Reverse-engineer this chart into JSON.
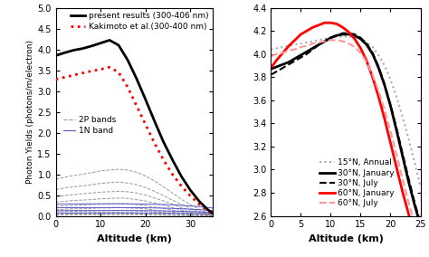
{
  "left": {
    "xlabel": "Altitude (km)",
    "ylabel": "Photon Yields (photons/m/electron)",
    "xlim": [
      0,
      35
    ],
    "ylim": [
      0,
      5
    ],
    "yticks": [
      0,
      0.5,
      1.0,
      1.5,
      2.0,
      2.5,
      3.0,
      3.5,
      4.0,
      4.5,
      5.0
    ],
    "xticks": [
      0,
      10,
      20,
      30
    ],
    "present_results": {
      "x": [
        0,
        2,
        4,
        6,
        8,
        10,
        12,
        14,
        16,
        18,
        20,
        22,
        24,
        26,
        28,
        30,
        32,
        34,
        35
      ],
      "y": [
        3.85,
        3.92,
        3.98,
        4.02,
        4.08,
        4.15,
        4.22,
        4.1,
        3.75,
        3.3,
        2.8,
        2.28,
        1.78,
        1.35,
        0.95,
        0.62,
        0.35,
        0.14,
        0.07
      ],
      "color": "#000000",
      "linestyle": "solid",
      "linewidth": 2.0,
      "label": "present results (300-406 nm)"
    },
    "kakimoto": {
      "x": [
        0,
        2,
        4,
        6,
        8,
        10,
        12,
        14,
        16,
        18,
        20,
        22,
        24,
        26,
        28,
        30,
        32,
        34,
        35
      ],
      "y": [
        3.28,
        3.33,
        3.38,
        3.43,
        3.48,
        3.52,
        3.57,
        3.45,
        3.1,
        2.65,
        2.2,
        1.75,
        1.35,
        1.0,
        0.72,
        0.48,
        0.28,
        0.11,
        0.06
      ],
      "color": "#ff0000",
      "linestyle": "dotted",
      "linewidth": 2.0,
      "label": "Kakimoto et al.(300-400 nm)"
    },
    "bands_2P": [
      {
        "x": [
          0,
          2,
          4,
          6,
          8,
          10,
          12,
          14,
          16,
          18,
          20,
          22,
          24,
          26,
          28,
          30,
          32,
          34,
          35
        ],
        "y": [
          0.88,
          0.93,
          0.97,
          1.0,
          1.04,
          1.08,
          1.1,
          1.12,
          1.1,
          1.05,
          0.96,
          0.84,
          0.7,
          0.55,
          0.4,
          0.27,
          0.16,
          0.07,
          0.04
        ]
      },
      {
        "x": [
          0,
          2,
          4,
          6,
          8,
          10,
          12,
          14,
          16,
          18,
          20,
          22,
          24,
          26,
          28,
          30,
          32,
          34,
          35
        ],
        "y": [
          0.63,
          0.67,
          0.7,
          0.72,
          0.75,
          0.78,
          0.8,
          0.81,
          0.79,
          0.75,
          0.68,
          0.59,
          0.49,
          0.38,
          0.28,
          0.19,
          0.11,
          0.05,
          0.03
        ]
      },
      {
        "x": [
          0,
          2,
          4,
          6,
          8,
          10,
          12,
          14,
          16,
          18,
          20,
          22,
          24,
          26,
          28,
          30,
          32,
          34,
          35
        ],
        "y": [
          0.46,
          0.49,
          0.51,
          0.53,
          0.55,
          0.57,
          0.58,
          0.59,
          0.58,
          0.55,
          0.5,
          0.43,
          0.36,
          0.28,
          0.2,
          0.14,
          0.08,
          0.04,
          0.02
        ]
      },
      {
        "x": [
          0,
          2,
          4,
          6,
          8,
          10,
          12,
          14,
          16,
          18,
          20,
          22,
          24,
          26,
          28,
          30,
          32,
          34,
          35
        ],
        "y": [
          0.33,
          0.35,
          0.37,
          0.38,
          0.39,
          0.41,
          0.42,
          0.43,
          0.42,
          0.39,
          0.36,
          0.31,
          0.26,
          0.2,
          0.14,
          0.1,
          0.06,
          0.025,
          0.013
        ]
      },
      {
        "x": [
          0,
          2,
          4,
          6,
          8,
          10,
          12,
          14,
          16,
          18,
          20,
          22,
          24,
          26,
          28,
          30,
          32,
          34,
          35
        ],
        "y": [
          0.23,
          0.24,
          0.25,
          0.26,
          0.27,
          0.28,
          0.29,
          0.29,
          0.29,
          0.27,
          0.25,
          0.21,
          0.18,
          0.14,
          0.1,
          0.07,
          0.04,
          0.017,
          0.009
        ]
      },
      {
        "x": [
          0,
          2,
          4,
          6,
          8,
          10,
          12,
          14,
          16,
          18,
          20,
          22,
          24,
          26,
          28,
          30,
          32,
          34,
          35
        ],
        "y": [
          0.15,
          0.16,
          0.17,
          0.17,
          0.18,
          0.19,
          0.19,
          0.2,
          0.19,
          0.18,
          0.17,
          0.14,
          0.12,
          0.09,
          0.07,
          0.048,
          0.028,
          0.012,
          0.006
        ]
      },
      {
        "x": [
          0,
          2,
          4,
          6,
          8,
          10,
          12,
          14,
          16,
          18,
          20,
          22,
          24,
          26,
          28,
          30,
          32,
          34,
          35
        ],
        "y": [
          0.1,
          0.105,
          0.11,
          0.115,
          0.12,
          0.125,
          0.13,
          0.13,
          0.13,
          0.12,
          0.11,
          0.095,
          0.08,
          0.062,
          0.045,
          0.031,
          0.018,
          0.008,
          0.004
        ]
      },
      {
        "x": [
          0,
          2,
          4,
          6,
          8,
          10,
          12,
          14,
          16,
          18,
          20,
          22,
          24,
          26,
          28,
          30,
          32,
          34,
          35
        ],
        "y": [
          0.063,
          0.067,
          0.071,
          0.073,
          0.076,
          0.079,
          0.081,
          0.082,
          0.08,
          0.076,
          0.069,
          0.059,
          0.049,
          0.038,
          0.028,
          0.019,
          0.011,
          0.005,
          0.0025
        ]
      },
      {
        "x": [
          0,
          2,
          4,
          6,
          8,
          10,
          12,
          14,
          16,
          18,
          20,
          22,
          24,
          26,
          28,
          30,
          32,
          34,
          35
        ],
        "y": [
          0.038,
          0.041,
          0.043,
          0.045,
          0.047,
          0.048,
          0.05,
          0.05,
          0.049,
          0.046,
          0.042,
          0.036,
          0.03,
          0.023,
          0.017,
          0.011,
          0.007,
          0.003,
          0.0015
        ]
      },
      {
        "x": [
          0,
          2,
          4,
          6,
          8,
          10,
          12,
          14,
          16,
          18,
          20,
          22,
          24,
          26,
          28,
          30,
          32,
          34,
          35
        ],
        "y": [
          0.022,
          0.024,
          0.025,
          0.026,
          0.027,
          0.028,
          0.029,
          0.029,
          0.028,
          0.027,
          0.024,
          0.021,
          0.017,
          0.013,
          0.01,
          0.007,
          0.004,
          0.0017,
          0.0009
        ]
      }
    ],
    "bands_1N": [
      {
        "x": [
          0,
          2,
          4,
          6,
          8,
          10,
          12,
          14,
          16,
          18,
          20,
          22,
          24,
          26,
          28,
          30,
          32,
          34,
          35
        ],
        "y": [
          0.285,
          0.287,
          0.288,
          0.289,
          0.29,
          0.291,
          0.291,
          0.291,
          0.29,
          0.288,
          0.285,
          0.28,
          0.274,
          0.265,
          0.254,
          0.24,
          0.222,
          0.2,
          0.188
        ]
      },
      {
        "x": [
          0,
          2,
          4,
          6,
          8,
          10,
          12,
          14,
          16,
          18,
          20,
          22,
          24,
          26,
          28,
          30,
          32,
          34,
          35
        ],
        "y": [
          0.195,
          0.196,
          0.197,
          0.198,
          0.199,
          0.199,
          0.2,
          0.2,
          0.199,
          0.197,
          0.195,
          0.191,
          0.186,
          0.18,
          0.172,
          0.162,
          0.149,
          0.133,
          0.125
        ]
      },
      {
        "x": [
          0,
          2,
          4,
          6,
          8,
          10,
          12,
          14,
          16,
          18,
          20,
          22,
          24,
          26,
          28,
          30,
          32,
          34,
          35
        ],
        "y": [
          0.125,
          0.126,
          0.127,
          0.127,
          0.128,
          0.128,
          0.129,
          0.129,
          0.128,
          0.127,
          0.125,
          0.123,
          0.12,
          0.115,
          0.11,
          0.103,
          0.095,
          0.085,
          0.08
        ]
      },
      {
        "x": [
          0,
          2,
          4,
          6,
          8,
          10,
          12,
          14,
          16,
          18,
          20,
          22,
          24,
          26,
          28,
          30,
          32,
          34,
          35
        ],
        "y": [
          0.068,
          0.069,
          0.069,
          0.07,
          0.07,
          0.07,
          0.071,
          0.071,
          0.07,
          0.069,
          0.068,
          0.067,
          0.065,
          0.063,
          0.06,
          0.056,
          0.051,
          0.046,
          0.043
        ]
      }
    ],
    "band_2P_color": "#999999",
    "band_1N_color": "#5555CC",
    "legend_2P_label": "2P bands",
    "legend_1N_label": "1N band"
  },
  "right": {
    "xlabel": "Altitude (km)",
    "xlim": [
      0,
      25
    ],
    "ylim": [
      2.6,
      4.4
    ],
    "yticks": [
      2.6,
      2.8,
      3.0,
      3.2,
      3.4,
      3.6,
      3.8,
      4.0,
      4.2,
      4.4
    ],
    "xticks": [
      0,
      5,
      10,
      15,
      20,
      25
    ],
    "lat15_annual": {
      "x": [
        0,
        1,
        2,
        3,
        4,
        5,
        6,
        7,
        8,
        9,
        10,
        11,
        12,
        13,
        14,
        15,
        16,
        17,
        18,
        19,
        20,
        21,
        22,
        23,
        24,
        25
      ],
      "y": [
        4.04,
        4.05,
        4.06,
        4.07,
        4.08,
        4.09,
        4.1,
        4.11,
        4.12,
        4.13,
        4.14,
        4.15,
        4.15,
        4.15,
        4.14,
        4.13,
        4.1,
        4.06,
        3.99,
        3.9,
        3.78,
        3.63,
        3.46,
        3.27,
        3.07,
        2.85
      ],
      "color": "#aaaaaa",
      "linestyle": "dotted",
      "linewidth": 1.5,
      "label": "15°N, Annual"
    },
    "lat30_jan": {
      "x": [
        0,
        1,
        2,
        3,
        4,
        5,
        6,
        7,
        8,
        9,
        10,
        11,
        12,
        13,
        14,
        15,
        16,
        17,
        18,
        19,
        20,
        21,
        22,
        23,
        24,
        25
      ],
      "y": [
        3.87,
        3.89,
        3.91,
        3.93,
        3.96,
        3.99,
        4.02,
        4.05,
        4.08,
        4.11,
        4.14,
        4.16,
        4.17,
        4.17,
        4.16,
        4.13,
        4.08,
        4.0,
        3.88,
        3.73,
        3.55,
        3.34,
        3.12,
        2.9,
        2.7,
        2.52
      ],
      "color": "#000000",
      "linestyle": "solid",
      "linewidth": 2.0,
      "label": "30°N, January"
    },
    "lat30_jul": {
      "x": [
        0,
        1,
        2,
        3,
        4,
        5,
        6,
        7,
        8,
        9,
        10,
        11,
        12,
        13,
        14,
        15,
        16,
        17,
        18,
        19,
        20,
        21,
        22,
        23,
        24,
        25
      ],
      "y": [
        3.82,
        3.85,
        3.88,
        3.91,
        3.94,
        3.97,
        4.0,
        4.04,
        4.08,
        4.11,
        4.14,
        4.16,
        4.18,
        4.18,
        4.17,
        4.14,
        4.09,
        4.01,
        3.89,
        3.74,
        3.56,
        3.36,
        3.14,
        2.93,
        2.72,
        2.54
      ],
      "color": "#000000",
      "linestyle": "dashed",
      "linewidth": 1.5,
      "label": "30°N, July"
    },
    "lat60_jan": {
      "x": [
        0,
        1,
        2,
        3,
        4,
        5,
        6,
        7,
        8,
        9,
        10,
        11,
        12,
        13,
        14,
        15,
        16,
        17,
        18,
        19,
        20,
        21,
        22,
        23,
        24,
        25
      ],
      "y": [
        3.88,
        3.95,
        4.01,
        4.07,
        4.12,
        4.17,
        4.2,
        4.23,
        4.25,
        4.27,
        4.27,
        4.26,
        4.23,
        4.19,
        4.13,
        4.05,
        3.94,
        3.8,
        3.63,
        3.44,
        3.23,
        3.02,
        2.81,
        2.62,
        2.45,
        2.3
      ],
      "color": "#ff0000",
      "linestyle": "solid",
      "linewidth": 2.0,
      "label": "60°N, January"
    },
    "lat60_jul": {
      "x": [
        0,
        1,
        2,
        3,
        4,
        5,
        6,
        7,
        8,
        9,
        10,
        11,
        12,
        13,
        14,
        15,
        16,
        17,
        18,
        19,
        20,
        21,
        22,
        23,
        24,
        25
      ],
      "y": [
        3.98,
        4.0,
        4.01,
        4.03,
        4.04,
        4.06,
        4.07,
        4.09,
        4.1,
        4.11,
        4.12,
        4.12,
        4.11,
        4.09,
        4.06,
        4.01,
        3.93,
        3.82,
        3.68,
        3.52,
        3.33,
        3.13,
        2.92,
        2.72,
        2.54,
        2.38
      ],
      "color": "#ff9999",
      "linestyle": "dashed",
      "linewidth": 1.5,
      "label": "60°N, July"
    }
  },
  "bg_color": "#ffffff",
  "tick_direction": "in",
  "fontsize_label": 8,
  "fontsize_tick": 7,
  "fontsize_legend": 6.5
}
